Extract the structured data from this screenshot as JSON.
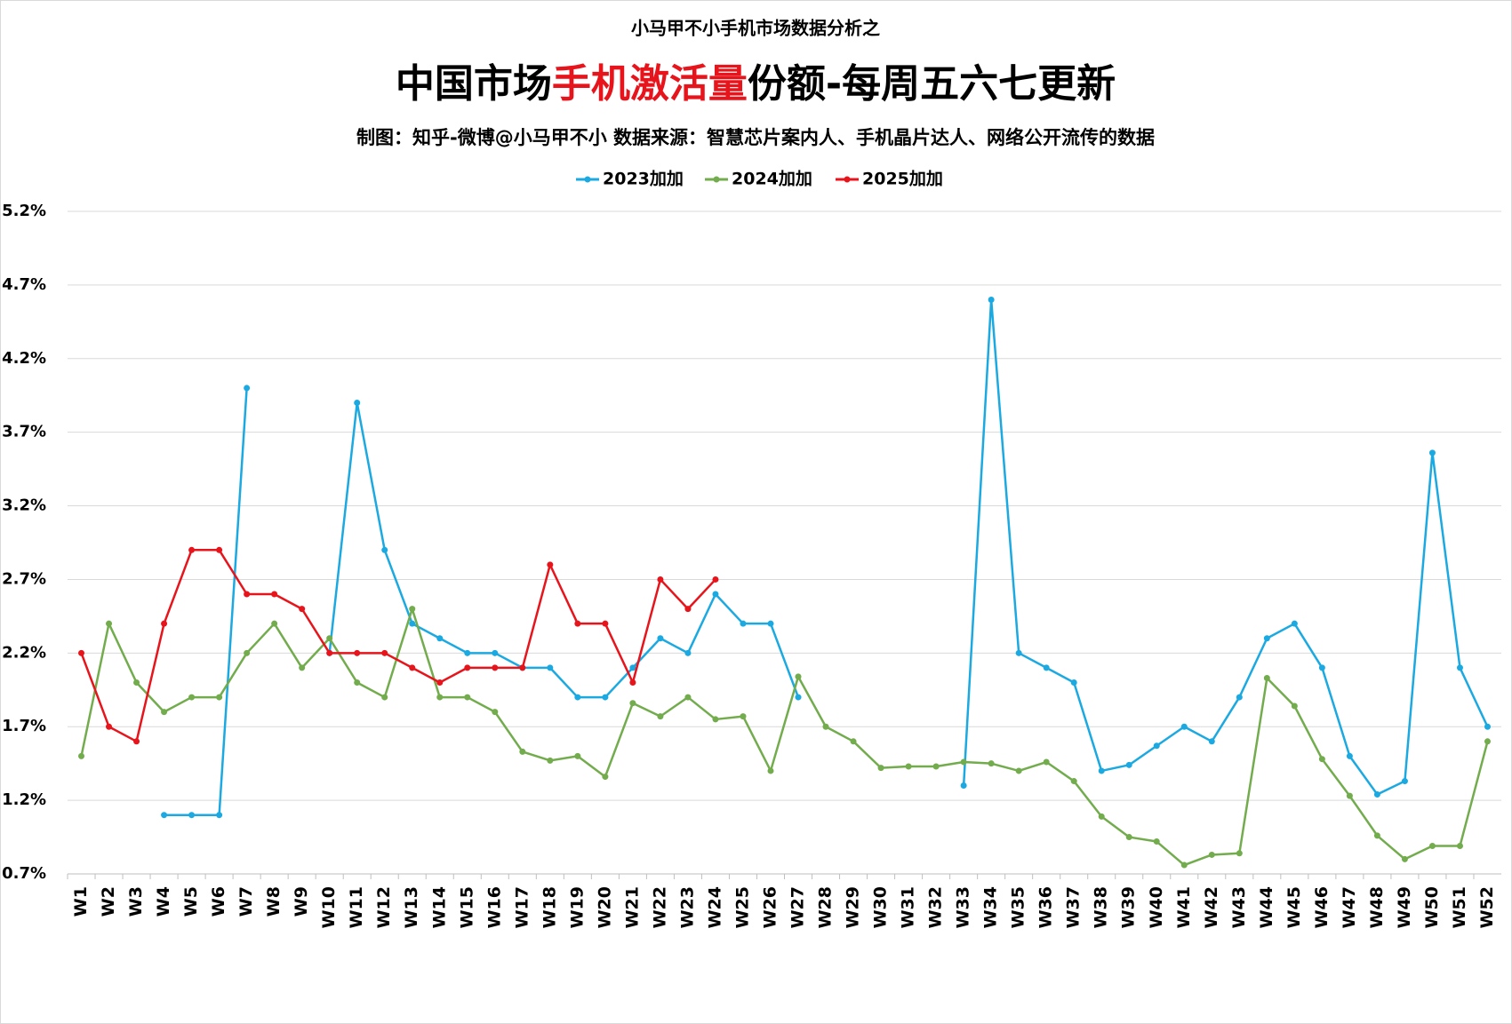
{
  "chart_data": {
    "type": "line",
    "header": "小马甲不小手机市场数据分析之",
    "title": [
      {
        "text": "中国市场",
        "color": "#000000"
      },
      {
        "text": "手机激活量",
        "color": "#e8141b"
      },
      {
        "text": "份额-每周五六七更新",
        "color": "#000000"
      }
    ],
    "subtitle": "制图：知乎-微博@小马甲不小  数据来源：智慧芯片案内人、手机晶片达人、网络公开流传的数据",
    "categories": [
      "W1",
      "W2",
      "W3",
      "W4",
      "W5",
      "W6",
      "W7",
      "W8",
      "W9",
      "W10",
      "W11",
      "W12",
      "W13",
      "W14",
      "W15",
      "W16",
      "W17",
      "W18",
      "W19",
      "W20",
      "W21",
      "W22",
      "W23",
      "W24",
      "W25",
      "W26",
      "W27",
      "W28",
      "W29",
      "W30",
      "W31",
      "W32",
      "W33",
      "W34",
      "W35",
      "W36",
      "W37",
      "W38",
      "W39",
      "W40",
      "W41",
      "W42",
      "W43",
      "W44",
      "W45",
      "W46",
      "W47",
      "W48",
      "W49",
      "W50",
      "W51",
      "W52"
    ],
    "series": [
      {
        "name": "2023加加",
        "color": "#1ba9e1",
        "values": [
          null,
          null,
          null,
          1.1,
          1.1,
          1.1,
          4.0,
          null,
          null,
          2.2,
          3.9,
          2.9,
          2.4,
          2.3,
          2.2,
          2.2,
          2.1,
          2.1,
          1.9,
          1.9,
          2.1,
          2.3,
          2.2,
          2.6,
          2.4,
          2.4,
          1.9,
          null,
          null,
          null,
          null,
          null,
          1.3,
          4.6,
          2.2,
          2.1,
          2.0,
          1.4,
          1.44,
          1.57,
          1.7,
          1.6,
          1.9,
          2.3,
          2.4,
          2.1,
          1.5,
          1.24,
          1.33,
          3.56,
          2.1,
          1.7
        ]
      },
      {
        "name": "2024加加",
        "color": "#72ac4d",
        "values": [
          1.5,
          2.4,
          2.0,
          1.8,
          1.9,
          1.9,
          2.2,
          2.4,
          2.1,
          2.3,
          2.0,
          1.9,
          2.5,
          1.9,
          1.9,
          1.8,
          1.53,
          1.47,
          1.5,
          1.36,
          1.86,
          1.77,
          1.9,
          1.75,
          1.77,
          1.4,
          2.04,
          1.7,
          1.6,
          1.42,
          1.43,
          1.43,
          1.46,
          1.45,
          1.4,
          1.46,
          1.33,
          1.09,
          0.95,
          0.92,
          0.76,
          0.83,
          0.84,
          2.03,
          1.84,
          1.48,
          1.23,
          0.96,
          0.8,
          0.89,
          0.89,
          1.6
        ]
      },
      {
        "name": "2025加加",
        "color": "#e8141b",
        "values": [
          2.2,
          1.7,
          1.6,
          2.4,
          2.9,
          2.9,
          2.6,
          2.6,
          2.5,
          2.2,
          2.2,
          2.2,
          2.1,
          2.0,
          2.1,
          2.1,
          2.1,
          2.8,
          2.4,
          2.4,
          2.0,
          2.7,
          2.5,
          2.7,
          null,
          null,
          null,
          null,
          null,
          null,
          null,
          null,
          null,
          null,
          null,
          null,
          null,
          null,
          null,
          null,
          null,
          null,
          null,
          null,
          null,
          null,
          null,
          null,
          null,
          null,
          null,
          null
        ]
      }
    ],
    "ylim": [
      0.7,
      5.2
    ],
    "yticks": [
      {
        "value": 0.7,
        "label": "0.7%"
      },
      {
        "value": 1.2,
        "label": "1.2%"
      },
      {
        "value": 1.7,
        "label": "1.7%"
      },
      {
        "value": 2.2,
        "label": "2.2%"
      },
      {
        "value": 2.7,
        "label": "2.7%"
      },
      {
        "value": 3.2,
        "label": "3.2%"
      },
      {
        "value": 3.7,
        "label": "3.7%"
      },
      {
        "value": 4.2,
        "label": "4.2%"
      },
      {
        "value": 4.7,
        "label": "4.7%"
      },
      {
        "value": 5.2,
        "label": "5.2%"
      }
    ],
    "grid": true,
    "legend": "top"
  }
}
